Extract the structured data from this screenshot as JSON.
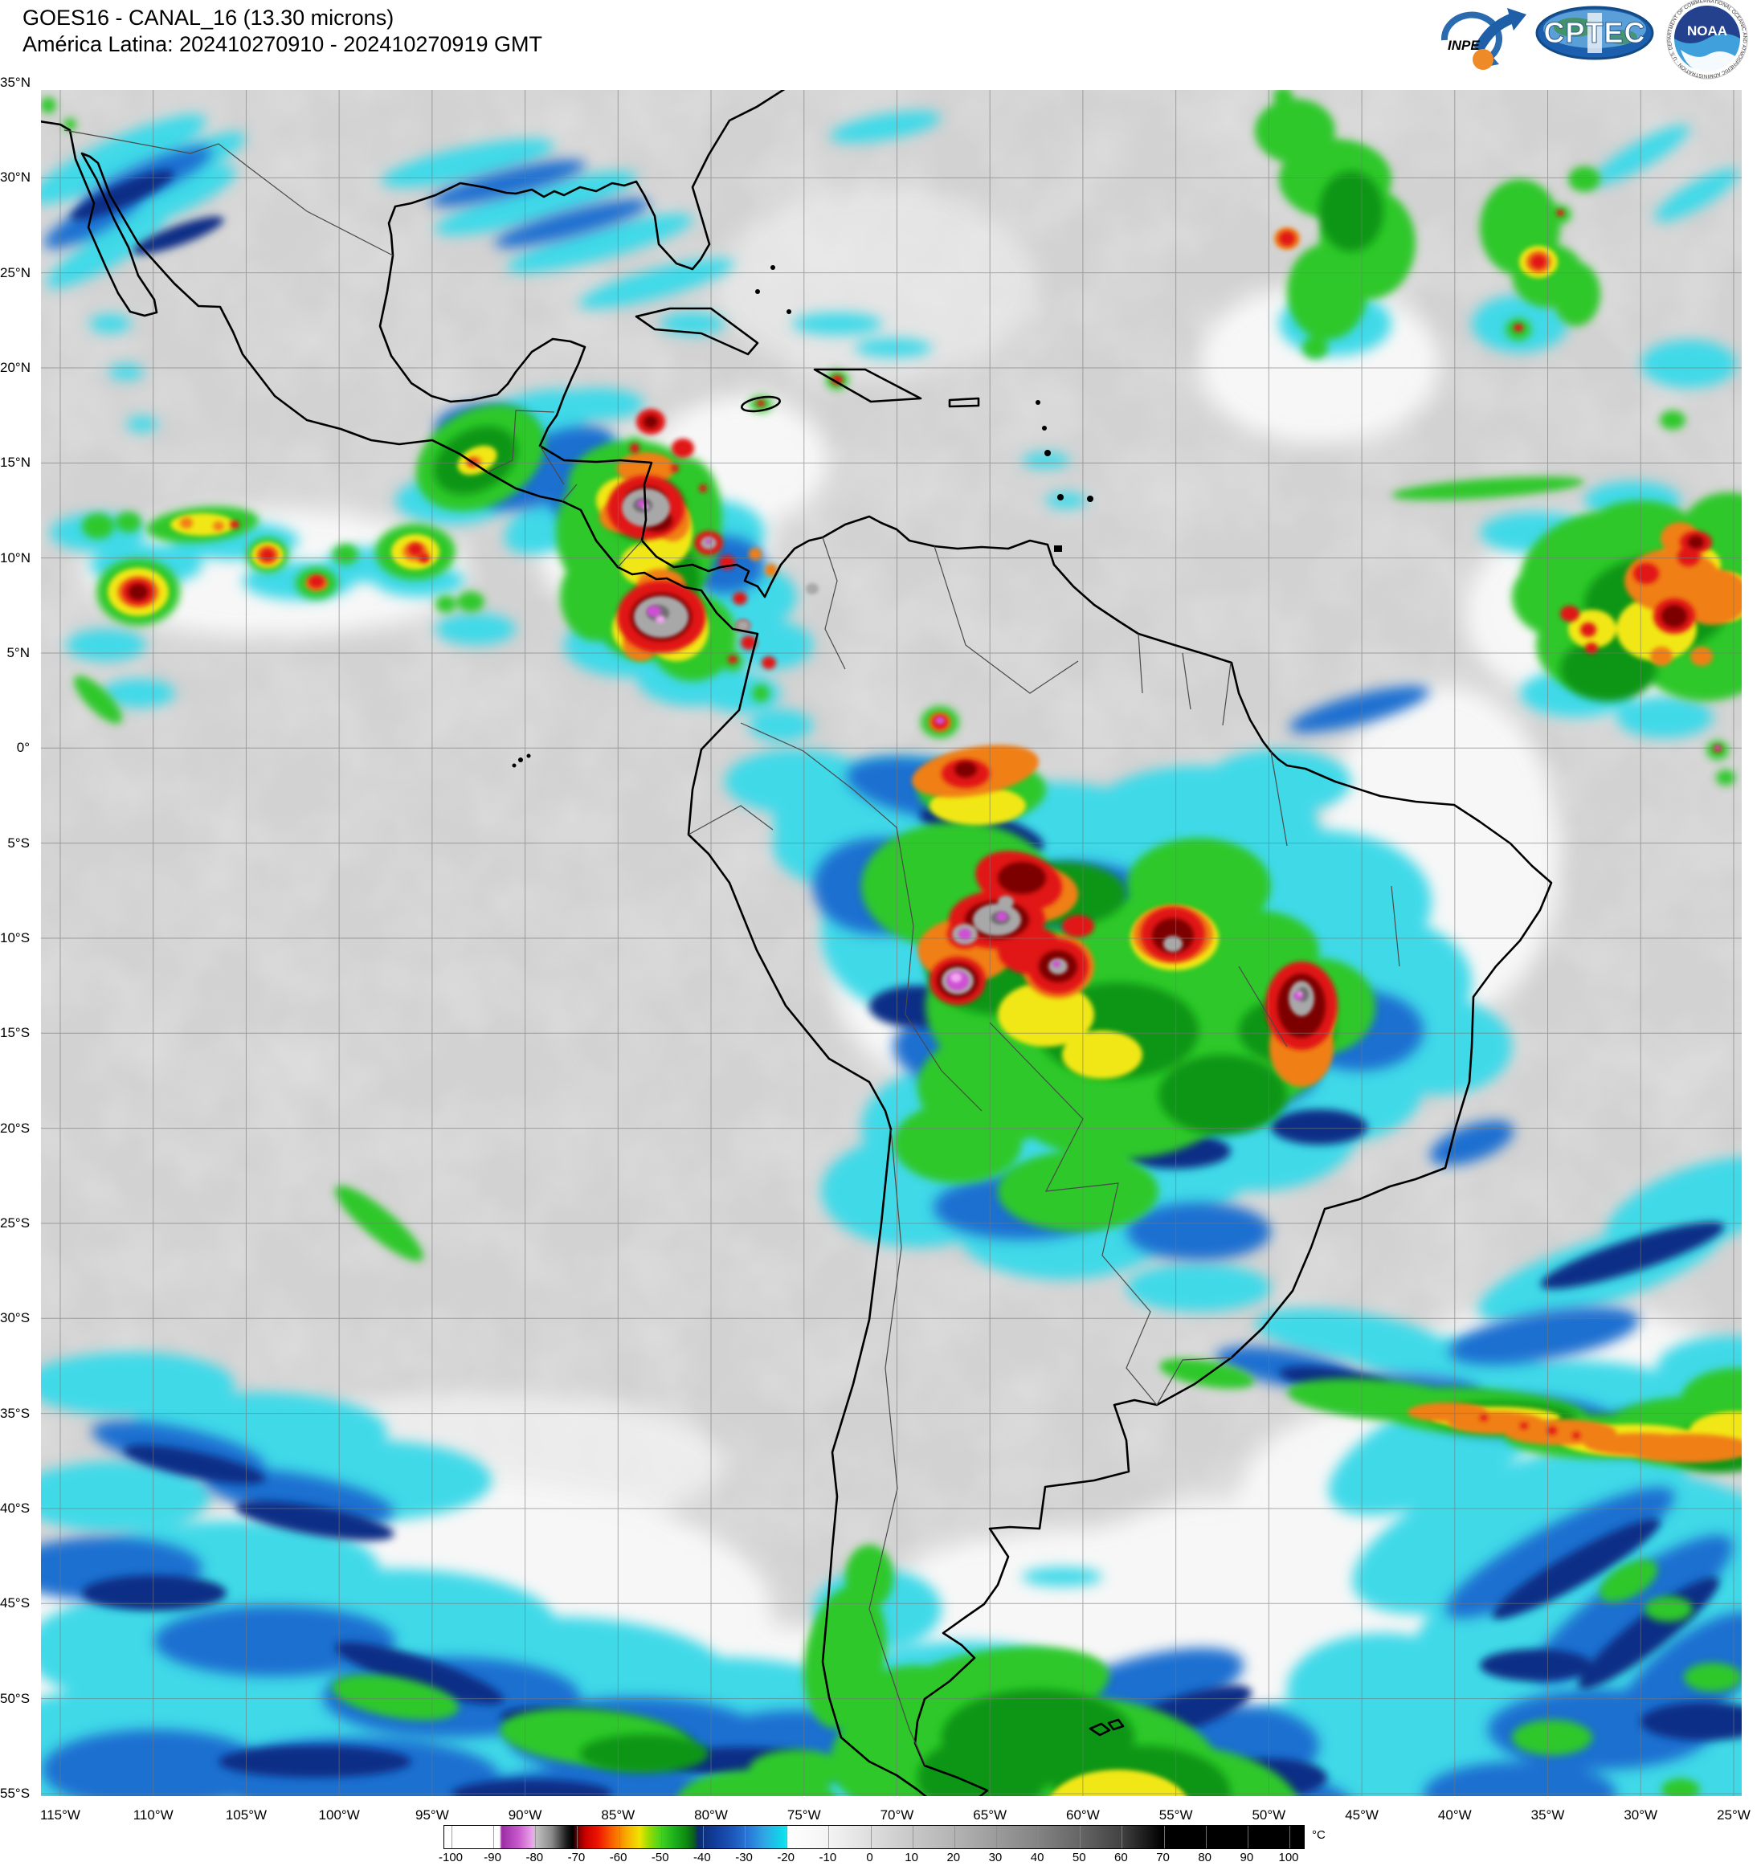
{
  "header": {
    "title_line1": "GOES16 - CANAL_16 (13.30 microns)",
    "title_line2": "América Latina: 202410270910 - 202410270919 GMT",
    "logos": {
      "inpe": "INPE",
      "cptec": "CPTEC",
      "noaa": "NOAA",
      "noaa_ring": "NATIONAL OCEANIC AND ATMOSPHERIC ADMINISTRATION · U.S. DEPARTMENT OF COMMERCE"
    }
  },
  "map": {
    "lat_labels": [
      "35°N",
      "30°N",
      "25°N",
      "20°N",
      "15°N",
      "10°N",
      "5°N",
      "0°",
      "5°S",
      "10°S",
      "15°S",
      "20°S",
      "25°S",
      "30°S",
      "35°S",
      "40°S",
      "45°S",
      "50°S",
      "55°S"
    ],
    "lon_labels": [
      "115°W",
      "110°W",
      "105°W",
      "100°W",
      "95°W",
      "90°W",
      "85°W",
      "80°W",
      "75°W",
      "70°W",
      "65°W",
      "60°W",
      "55°W",
      "50°W",
      "45°W",
      "40°W",
      "35°W",
      "30°W",
      "25°W"
    ],
    "background_gray": "#d2d2d2",
    "grid_color": "#777777"
  },
  "colorbar": {
    "unit": "°C",
    "tick_labels": [
      "-100",
      "-90",
      "-80",
      "-70",
      "-60",
      "-50",
      "-40",
      "-30",
      "-20",
      "-10",
      "0",
      "10",
      "20",
      "30",
      "40",
      "50",
      "60",
      "70",
      "80",
      "90",
      "100"
    ],
    "palette_stops": [
      {
        "v": -100,
        "c": "#ffffff"
      },
      {
        "v": -88.5,
        "c": "#ffffff"
      },
      {
        "v": -88,
        "c": "#9c2ca4"
      },
      {
        "v": -84,
        "c": "#c858cc"
      },
      {
        "v": -80.5,
        "c": "#eaa9ea"
      },
      {
        "v": -80,
        "c": "#c4c4c4"
      },
      {
        "v": -76,
        "c": "#8a8a8a"
      },
      {
        "v": -72.5,
        "c": "#1c1c1c"
      },
      {
        "v": -71,
        "c": "#000000"
      },
      {
        "v": -70,
        "c": "#6b0000"
      },
      {
        "v": -68,
        "c": "#c80000"
      },
      {
        "v": -65,
        "c": "#ee1400"
      },
      {
        "v": -62,
        "c": "#f85800"
      },
      {
        "v": -58,
        "c": "#f8ae00"
      },
      {
        "v": -55,
        "c": "#eee400"
      },
      {
        "v": -53,
        "c": "#a0dc00"
      },
      {
        "v": -50,
        "c": "#46d41e"
      },
      {
        "v": -47,
        "c": "#1eb41c"
      },
      {
        "v": -44,
        "c": "#0e8c12"
      },
      {
        "v": -42,
        "c": "#0a5c1e"
      },
      {
        "v": -41,
        "c": "#0c2c6e"
      },
      {
        "v": -37,
        "c": "#123c9c"
      },
      {
        "v": -33,
        "c": "#1c54b8"
      },
      {
        "v": -29,
        "c": "#2878d8"
      },
      {
        "v": -25,
        "c": "#30a8e6"
      },
      {
        "v": -22,
        "c": "#16cce8"
      },
      {
        "v": -20,
        "c": "#0ee4ee"
      },
      {
        "v": -19.6,
        "c": "#ffffff"
      },
      {
        "v": -10,
        "c": "#f4f4f4"
      },
      {
        "v": 0,
        "c": "#dedede"
      },
      {
        "v": 10,
        "c": "#c8c8c8"
      },
      {
        "v": 20,
        "c": "#b4b4b4"
      },
      {
        "v": 30,
        "c": "#9c9c9c"
      },
      {
        "v": 40,
        "c": "#848484"
      },
      {
        "v": 50,
        "c": "#666666"
      },
      {
        "v": 60,
        "c": "#434343"
      },
      {
        "v": 70,
        "c": "#000000"
      },
      {
        "v": 100,
        "c": "#000000"
      }
    ]
  }
}
